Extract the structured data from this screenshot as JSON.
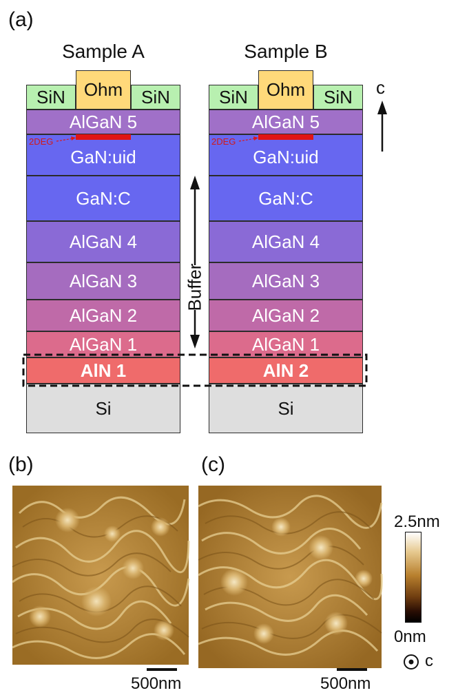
{
  "figure": {
    "panel_a": "(a)",
    "panel_b": "(b)",
    "panel_c": "(c)"
  },
  "samples": [
    {
      "title": "Sample A",
      "contact": "Ohm",
      "passivation_left": "SiN",
      "passivation_right": "SiN",
      "layers": [
        "AlGaN 5",
        "GaN:uid",
        "GaN:C",
        "AlGaN 4",
        "AlGaN 3",
        "AlGaN 2",
        "AlGaN 1",
        "AlN 1",
        "Si"
      ],
      "twodeg_label": "2DEG"
    },
    {
      "title": "Sample B",
      "contact": "Ohm",
      "passivation_left": "SiN",
      "passivation_right": "SiN",
      "layers": [
        "AlGaN 5",
        "GaN:uid",
        "GaN:C",
        "AlGaN 4",
        "AlGaN 3",
        "AlGaN 2",
        "AlGaN 1",
        "AlN 2",
        "Si"
      ],
      "twodeg_label": "2DEG"
    }
  ],
  "buffer_label": "Buffer",
  "c_axis_label": "c",
  "afm": {
    "scale_bar_b": "500nm",
    "scale_bar_c": "500nm",
    "colorbar_max": "2.5nm",
    "colorbar_min": "0nm",
    "out_of_plane_label": "c"
  },
  "colors": {
    "sin": "#b8f0b0",
    "ohm": "#ffd97a",
    "algan5": "#a070c8",
    "gan": "#6767f0",
    "algan4": "#8a6ad6",
    "algan3": "#a56cbf",
    "algan2": "#bf6aa8",
    "algan1": "#dc6b8c",
    "aln": "#ef6b6b",
    "si": "#dedede",
    "twodeg": "#e01515"
  }
}
